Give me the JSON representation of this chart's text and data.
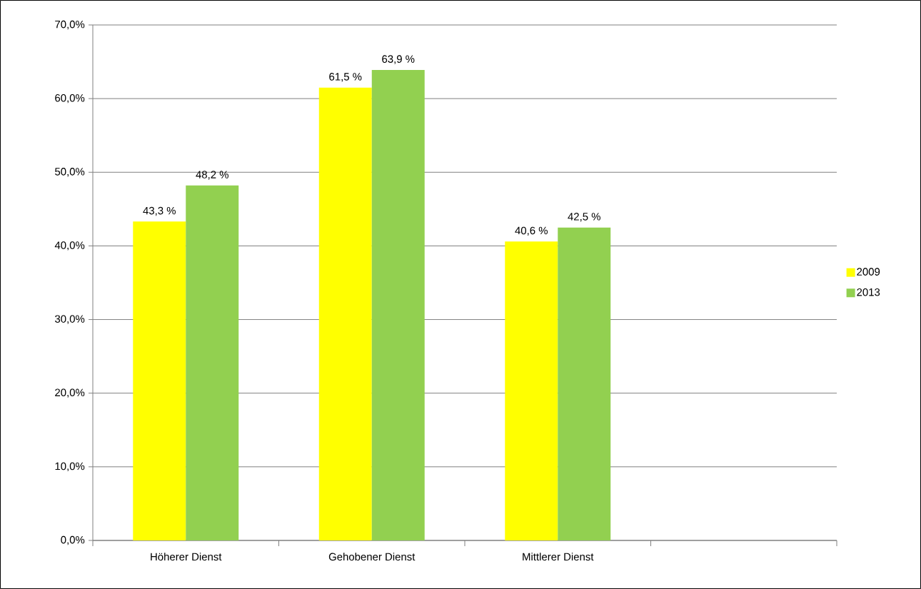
{
  "chart_data": {
    "type": "bar",
    "categories": [
      "Höherer Dienst",
      "Gehobener Dienst",
      "Mittlerer Dienst",
      null
    ],
    "series": [
      {
        "name": "2009",
        "color": "#ffff00",
        "values": [
          43.3,
          61.5,
          40.6,
          null
        ],
        "value_labels": [
          "43,3 %",
          "61,5 %",
          "40,6 %",
          null
        ]
      },
      {
        "name": "2013",
        "color": "#92d050",
        "values": [
          48.2,
          63.9,
          42.5,
          null
        ],
        "value_labels": [
          "48,2 %",
          "63,9 %",
          "42,5 %",
          null
        ]
      }
    ],
    "ylim": [
      0,
      70
    ],
    "yticks": [
      {
        "value": 0,
        "label": "0,0%"
      },
      {
        "value": 10,
        "label": "10,0%"
      },
      {
        "value": 20,
        "label": "20,0%"
      },
      {
        "value": 30,
        "label": "30,0%"
      },
      {
        "value": 40,
        "label": "40,0%"
      },
      {
        "value": 50,
        "label": "50,0%"
      },
      {
        "value": 60,
        "label": "60,0%"
      },
      {
        "value": 70,
        "label": "70,0%"
      }
    ],
    "grid": "y",
    "legend": "right"
  }
}
